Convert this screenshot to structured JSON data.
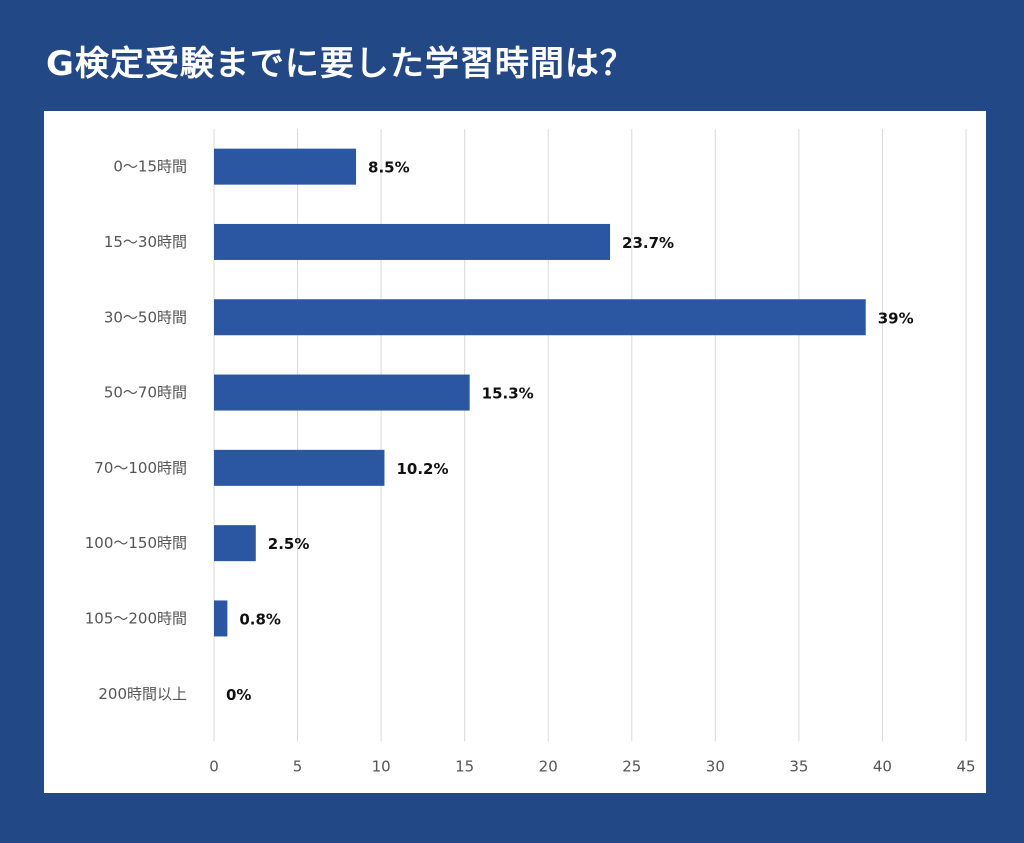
{
  "title": "G検定受験までに要した学習時間は？",
  "colors": {
    "background": "#224885",
    "bar": "#2b57a2",
    "panel": "#ffffff",
    "grid": "#d9d9d9"
  },
  "chart_data": {
    "type": "bar",
    "orientation": "horizontal",
    "title": "G検定受験までに要した学習時間は？",
    "categories": [
      "0〜15時間",
      "15〜30時間",
      "30〜50時間",
      "50〜70時間",
      "70〜100時間",
      "100〜150時間",
      "105〜200時間",
      "200時間以上"
    ],
    "values": [
      8.5,
      23.7,
      39,
      15.3,
      10.2,
      2.5,
      0.8,
      0
    ],
    "value_labels": [
      "8.5%",
      "23.7%",
      "39%",
      "15.3%",
      "10.2%",
      "2.5%",
      "0.8%",
      "0%"
    ],
    "xlim": [
      0,
      45
    ],
    "xticks": [
      0,
      5,
      10,
      15,
      20,
      25,
      30,
      35,
      40,
      45
    ],
    "grid": true,
    "legend": "none"
  }
}
